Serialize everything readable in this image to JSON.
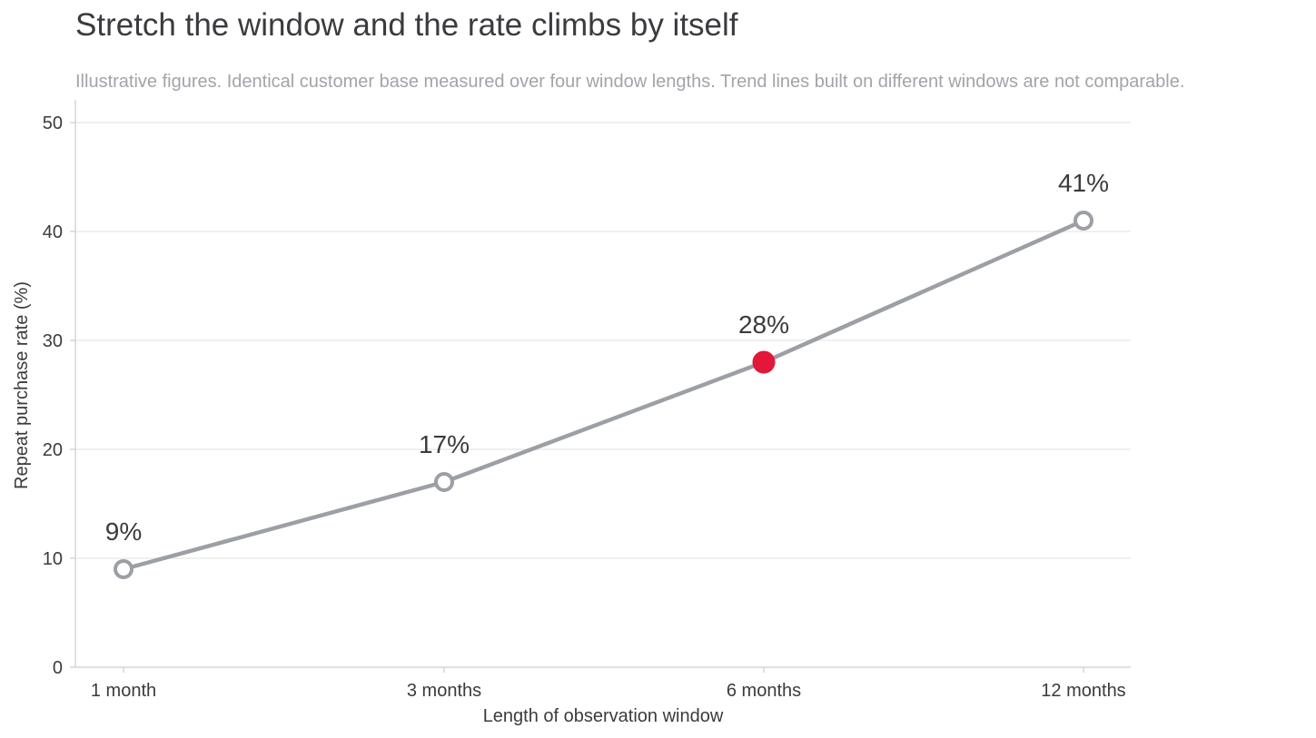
{
  "chart_data": {
    "type": "line",
    "title": "Stretch the window and the rate climbs by itself",
    "subtitle": "Illustrative figures. Identical customer base measured over four window lengths. Trend lines built on different windows are not comparable.",
    "xlabel": "Length of observation window",
    "ylabel": "Repeat purchase rate (%)",
    "categories": [
      "1 month",
      "3 months",
      "6 months",
      "12 months"
    ],
    "values": [
      9,
      17,
      28,
      41
    ],
    "data_labels": [
      "9%",
      "17%",
      "28%",
      "41%"
    ],
    "highlight_index": 2,
    "ylim": [
      0,
      50
    ],
    "yticks": [
      0,
      10,
      20,
      30,
      40,
      50
    ],
    "grid": "horizontal",
    "colors": {
      "line": "#9ca0a5",
      "highlight": "#e3173a",
      "grid": "#ececec",
      "axis": "#d4d6d9",
      "text": "#3a3b3e",
      "subtitle": "#a1a4a9"
    }
  }
}
